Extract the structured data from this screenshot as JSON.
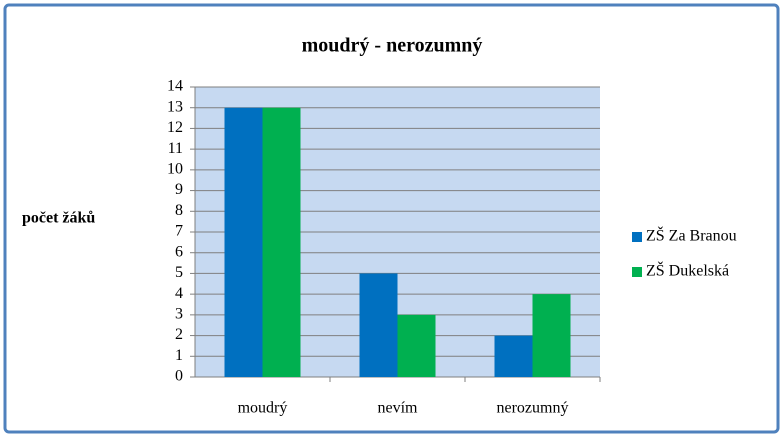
{
  "chart_data": {
    "type": "bar",
    "title": "moudrý - nerozumný",
    "y_label": "počet žáků",
    "categories": [
      "moudrý",
      "nevím",
      "nerozumný"
    ],
    "series": [
      {
        "name": "ZŠ Za Branou",
        "color": "#0070c0",
        "values": [
          13,
          5,
          2
        ]
      },
      {
        "name": "ZŠ Dukelská",
        "color": "#00b050",
        "values": [
          13,
          3,
          4
        ]
      }
    ],
    "ylim": [
      0,
      14
    ],
    "yticks": [
      0,
      1,
      2,
      3,
      4,
      5,
      6,
      7,
      8,
      9,
      10,
      11,
      12,
      13,
      14
    ],
    "grid": true,
    "legend": "right"
  }
}
